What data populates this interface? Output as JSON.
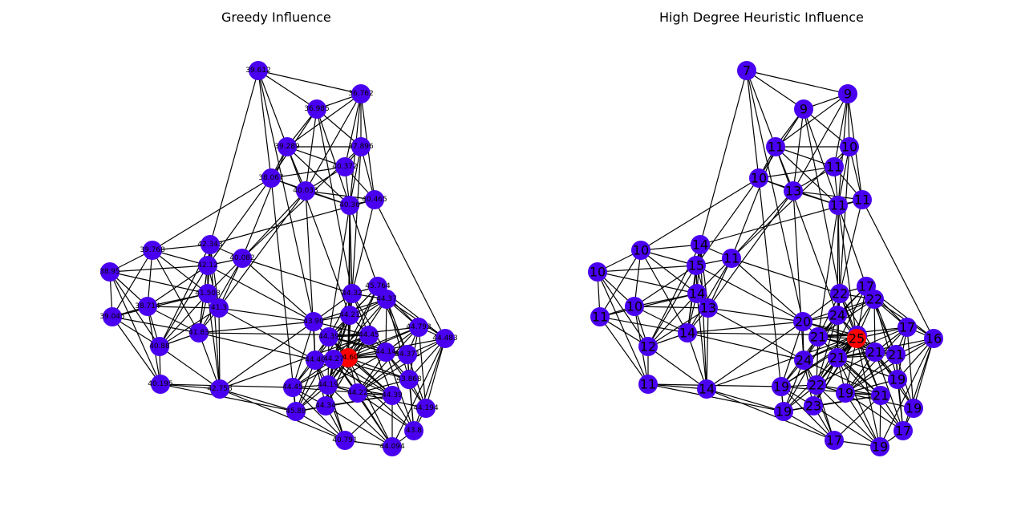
{
  "figure": {
    "panels": [
      {
        "title": "Greedy Influence",
        "node_color": "#4a00f0",
        "highlight_color": "#ff0000",
        "label_size": "small",
        "nodes": [
          {
            "id": 0,
            "label": "39.612"
          },
          {
            "id": 1,
            "label": "36.762"
          },
          {
            "id": 2,
            "label": "36.985"
          },
          {
            "id": 3,
            "label": "39.289"
          },
          {
            "id": 4,
            "label": "37.896"
          },
          {
            "id": 5,
            "label": "40.372"
          },
          {
            "id": 6,
            "label": "38.067"
          },
          {
            "id": 7,
            "label": "40.033"
          },
          {
            "id": 8,
            "label": "40.465"
          },
          {
            "id": 9,
            "label": "40.36"
          },
          {
            "id": 10,
            "label": "39.768"
          },
          {
            "id": 11,
            "label": "42.343"
          },
          {
            "id": 12,
            "label": "40.082"
          },
          {
            "id": 13,
            "label": "38.95"
          },
          {
            "id": 14,
            "label": "42.12"
          },
          {
            "id": 15,
            "label": "41.508"
          },
          {
            "id": 16,
            "label": "41.3"
          },
          {
            "id": 17,
            "label": "38.714"
          },
          {
            "id": 18,
            "label": "39.045"
          },
          {
            "id": 19,
            "label": "41.83"
          },
          {
            "id": 20,
            "label": "40.88"
          },
          {
            "id": 21,
            "label": "40.195"
          },
          {
            "id": 22,
            "label": "42.758"
          },
          {
            "id": 23,
            "label": "44.32"
          },
          {
            "id": 24,
            "label": "45.764"
          },
          {
            "id": 25,
            "label": "44.37"
          },
          {
            "id": 26,
            "label": "43.90"
          },
          {
            "id": 27,
            "label": "44.21"
          },
          {
            "id": 28,
            "label": "44.39"
          },
          {
            "id": 29,
            "label": "44.45"
          },
          {
            "id": 30,
            "label": "44.793"
          },
          {
            "id": 31,
            "label": "44.483"
          },
          {
            "id": 32,
            "label": "44.40"
          },
          {
            "id": 33,
            "label": "44.60"
          },
          {
            "id": 34,
            "label": "44.14"
          },
          {
            "id": 35,
            "label": "44.371"
          },
          {
            "id": 36,
            "label": "44.27"
          },
          {
            "id": 37,
            "label": "44.45"
          },
          {
            "id": 38,
            "label": "44.19"
          },
          {
            "id": 39,
            "label": "44.22"
          },
          {
            "id": 40,
            "label": "43.868"
          },
          {
            "id": 41,
            "label": "45.89"
          },
          {
            "id": 42,
            "label": "44.34"
          },
          {
            "id": 43,
            "label": "44.194"
          },
          {
            "id": 44,
            "label": "44.39"
          },
          {
            "id": 45,
            "label": "43.8"
          },
          {
            "id": 46,
            "label": "40.791"
          },
          {
            "id": 47,
            "label": "44.094"
          }
        ]
      },
      {
        "title": "High Degree Heuristic Influence",
        "node_color": "#4a00f0",
        "highlight_color": "#ff0000",
        "label_size": "large",
        "nodes": [
          {
            "id": 0,
            "label": "7"
          },
          {
            "id": 1,
            "label": "9"
          },
          {
            "id": 2,
            "label": "9"
          },
          {
            "id": 3,
            "label": "11"
          },
          {
            "id": 4,
            "label": "10"
          },
          {
            "id": 5,
            "label": "11"
          },
          {
            "id": 6,
            "label": "10"
          },
          {
            "id": 7,
            "label": "13"
          },
          {
            "id": 8,
            "label": "11"
          },
          {
            "id": 9,
            "label": "11"
          },
          {
            "id": 10,
            "label": "10"
          },
          {
            "id": 11,
            "label": "14"
          },
          {
            "id": 12,
            "label": "11"
          },
          {
            "id": 13,
            "label": "10"
          },
          {
            "id": 14,
            "label": "15"
          },
          {
            "id": 15,
            "label": "14"
          },
          {
            "id": 16,
            "label": "13"
          },
          {
            "id": 17,
            "label": "10"
          },
          {
            "id": 18,
            "label": "11"
          },
          {
            "id": 19,
            "label": "14"
          },
          {
            "id": 20,
            "label": "12"
          },
          {
            "id": 21,
            "label": "11"
          },
          {
            "id": 22,
            "label": "14"
          },
          {
            "id": 23,
            "label": "22"
          },
          {
            "id": 24,
            "label": "17"
          },
          {
            "id": 25,
            "label": "22"
          },
          {
            "id": 26,
            "label": "20"
          },
          {
            "id": 27,
            "label": "24"
          },
          {
            "id": 28,
            "label": "21"
          },
          {
            "id": 29,
            "label": "22"
          },
          {
            "id": 30,
            "label": "17"
          },
          {
            "id": 31,
            "label": "16"
          },
          {
            "id": 32,
            "label": "24"
          },
          {
            "id": 33,
            "label": "25"
          },
          {
            "id": 34,
            "label": "21"
          },
          {
            "id": 35,
            "label": "21"
          },
          {
            "id": 36,
            "label": "21"
          },
          {
            "id": 37,
            "label": "19"
          },
          {
            "id": 38,
            "label": "22"
          },
          {
            "id": 39,
            "label": "19"
          },
          {
            "id": 40,
            "label": "19"
          },
          {
            "id": 41,
            "label": "19"
          },
          {
            "id": 42,
            "label": "23"
          },
          {
            "id": 43,
            "label": "19"
          },
          {
            "id": 44,
            "label": "21"
          },
          {
            "id": 45,
            "label": "17"
          },
          {
            "id": 46,
            "label": "17"
          },
          {
            "id": 47,
            "label": "19"
          }
        ]
      }
    ],
    "highlighted_node_id": 33,
    "edges": [
      [
        0,
        1
      ],
      [
        0,
        2
      ],
      [
        0,
        3
      ],
      [
        0,
        6
      ],
      [
        0,
        11
      ],
      [
        0,
        26
      ],
      [
        1,
        2
      ],
      [
        1,
        3
      ],
      [
        1,
        4
      ],
      [
        1,
        5
      ],
      [
        1,
        7
      ],
      [
        1,
        8
      ],
      [
        1,
        9
      ],
      [
        2,
        3
      ],
      [
        2,
        4
      ],
      [
        2,
        6
      ],
      [
        2,
        7
      ],
      [
        2,
        9
      ],
      [
        2,
        23
      ],
      [
        3,
        4
      ],
      [
        3,
        5
      ],
      [
        3,
        6
      ],
      [
        3,
        7
      ],
      [
        3,
        9
      ],
      [
        3,
        12
      ],
      [
        3,
        27
      ],
      [
        4,
        5
      ],
      [
        4,
        8
      ],
      [
        4,
        9
      ],
      [
        4,
        12
      ],
      [
        4,
        23
      ],
      [
        5,
        6
      ],
      [
        5,
        7
      ],
      [
        5,
        8
      ],
      [
        5,
        9
      ],
      [
        6,
        7
      ],
      [
        6,
        9
      ],
      [
        6,
        10
      ],
      [
        6,
        14
      ],
      [
        6,
        41
      ],
      [
        7,
        8
      ],
      [
        7,
        9
      ],
      [
        7,
        12
      ],
      [
        7,
        16
      ],
      [
        7,
        32
      ],
      [
        8,
        9
      ],
      [
        8,
        23
      ],
      [
        8,
        31
      ],
      [
        8,
        11
      ],
      [
        9,
        23
      ],
      [
        9,
        27
      ],
      [
        9,
        33
      ],
      [
        9,
        28
      ],
      [
        9,
        24
      ],
      [
        10,
        11
      ],
      [
        10,
        13
      ],
      [
        10,
        14
      ],
      [
        10,
        15
      ],
      [
        10,
        17
      ],
      [
        10,
        18
      ],
      [
        10,
        19
      ],
      [
        11,
        12
      ],
      [
        11,
        14
      ],
      [
        11,
        15
      ],
      [
        11,
        16
      ],
      [
        11,
        19
      ],
      [
        11,
        20
      ],
      [
        11,
        22
      ],
      [
        12,
        14
      ],
      [
        12,
        15
      ],
      [
        12,
        16
      ],
      [
        12,
        19
      ],
      [
        12,
        23
      ],
      [
        12,
        26
      ],
      [
        13,
        14
      ],
      [
        13,
        17
      ],
      [
        13,
        18
      ],
      [
        13,
        20
      ],
      [
        13,
        21
      ],
      [
        13,
        15
      ],
      [
        14,
        15
      ],
      [
        14,
        16
      ],
      [
        14,
        17
      ],
      [
        14,
        19
      ],
      [
        14,
        20
      ],
      [
        14,
        26
      ],
      [
        15,
        16
      ],
      [
        15,
        17
      ],
      [
        15,
        19
      ],
      [
        15,
        20
      ],
      [
        15,
        22
      ],
      [
        15,
        18
      ],
      [
        16,
        17
      ],
      [
        16,
        19
      ],
      [
        16,
        20
      ],
      [
        16,
        22
      ],
      [
        16,
        26
      ],
      [
        16,
        32
      ],
      [
        17,
        18
      ],
      [
        17,
        19
      ],
      [
        17,
        20
      ],
      [
        17,
        21
      ],
      [
        18,
        19
      ],
      [
        18,
        20
      ],
      [
        18,
        21
      ],
      [
        19,
        20
      ],
      [
        19,
        22
      ],
      [
        19,
        26
      ],
      [
        19,
        32
      ],
      [
        19,
        29
      ],
      [
        20,
        21
      ],
      [
        20,
        22
      ],
      [
        21,
        22
      ],
      [
        21,
        37
      ],
      [
        21,
        41
      ],
      [
        22,
        29
      ],
      [
        22,
        41
      ],
      [
        22,
        46
      ],
      [
        22,
        26
      ],
      [
        23,
        24
      ],
      [
        23,
        25
      ],
      [
        23,
        26
      ],
      [
        23,
        27
      ],
      [
        23,
        28
      ],
      [
        23,
        29
      ],
      [
        23,
        33
      ],
      [
        23,
        34
      ],
      [
        23,
        36
      ],
      [
        24,
        25
      ],
      [
        24,
        27
      ],
      [
        24,
        28
      ],
      [
        24,
        30
      ],
      [
        24,
        31
      ],
      [
        24,
        33
      ],
      [
        24,
        35
      ],
      [
        24,
        38
      ],
      [
        25,
        26
      ],
      [
        25,
        27
      ],
      [
        25,
        28
      ],
      [
        25,
        30
      ],
      [
        25,
        31
      ],
      [
        25,
        33
      ],
      [
        25,
        34
      ],
      [
        25,
        35
      ],
      [
        25,
        36
      ],
      [
        25,
        40
      ],
      [
        26,
        27
      ],
      [
        26,
        28
      ],
      [
        26,
        29
      ],
      [
        26,
        32
      ],
      [
        26,
        33
      ],
      [
        26,
        37
      ],
      [
        27,
        28
      ],
      [
        27,
        29
      ],
      [
        27,
        32
      ],
      [
        27,
        33
      ],
      [
        27,
        34
      ],
      [
        27,
        36
      ],
      [
        27,
        38
      ],
      [
        27,
        41
      ],
      [
        28,
        29
      ],
      [
        28,
        30
      ],
      [
        28,
        32
      ],
      [
        28,
        33
      ],
      [
        28,
        34
      ],
      [
        28,
        35
      ],
      [
        28,
        37
      ],
      [
        28,
        38
      ],
      [
        28,
        44
      ],
      [
        29,
        32
      ],
      [
        29,
        33
      ],
      [
        29,
        36
      ],
      [
        29,
        37
      ],
      [
        29,
        38
      ],
      [
        29,
        41
      ],
      [
        29,
        42
      ],
      [
        29,
        44
      ],
      [
        30,
        31
      ],
      [
        30,
        33
      ],
      [
        30,
        34
      ],
      [
        30,
        35
      ],
      [
        30,
        36
      ],
      [
        30,
        39
      ],
      [
        30,
        40
      ],
      [
        30,
        43
      ],
      [
        31,
        35
      ],
      [
        31,
        36
      ],
      [
        31,
        39
      ],
      [
        31,
        40
      ],
      [
        31,
        43
      ],
      [
        31,
        45
      ],
      [
        31,
        47
      ],
      [
        32,
        33
      ],
      [
        32,
        37
      ],
      [
        32,
        38
      ],
      [
        32,
        41
      ],
      [
        32,
        42
      ],
      [
        32,
        44
      ],
      [
        32,
        46
      ],
      [
        33,
        34
      ],
      [
        33,
        35
      ],
      [
        33,
        36
      ],
      [
        33,
        37
      ],
      [
        33,
        38
      ],
      [
        33,
        39
      ],
      [
        33,
        40
      ],
      [
        33,
        42
      ],
      [
        33,
        44
      ],
      [
        33,
        47
      ],
      [
        34,
        35
      ],
      [
        34,
        36
      ],
      [
        34,
        38
      ],
      [
        34,
        39
      ],
      [
        34,
        40
      ],
      [
        34,
        43
      ],
      [
        34,
        45
      ],
      [
        35,
        36
      ],
      [
        35,
        39
      ],
      [
        35,
        40
      ],
      [
        35,
        43
      ],
      [
        35,
        45
      ],
      [
        36,
        38
      ],
      [
        36,
        39
      ],
      [
        36,
        40
      ],
      [
        36,
        42
      ],
      [
        36,
        44
      ],
      [
        36,
        45
      ],
      [
        36,
        47
      ],
      [
        37,
        38
      ],
      [
        37,
        41
      ],
      [
        37,
        42
      ],
      [
        37,
        44
      ],
      [
        37,
        46
      ],
      [
        38,
        39
      ],
      [
        38,
        41
      ],
      [
        38,
        42
      ],
      [
        38,
        44
      ],
      [
        38,
        46
      ],
      [
        38,
        47
      ],
      [
        39,
        40
      ],
      [
        39,
        43
      ],
      [
        39,
        44
      ],
      [
        39,
        45
      ],
      [
        39,
        47
      ],
      [
        40,
        43
      ],
      [
        40,
        45
      ],
      [
        41,
        42
      ],
      [
        41,
        46
      ],
      [
        41,
        44
      ],
      [
        42,
        44
      ],
      [
        42,
        46
      ],
      [
        42,
        47
      ],
      [
        43,
        45
      ],
      [
        44,
        45
      ],
      [
        44,
        46
      ],
      [
        44,
        47
      ],
      [
        45,
        47
      ],
      [
        46,
        47
      ]
    ]
  }
}
